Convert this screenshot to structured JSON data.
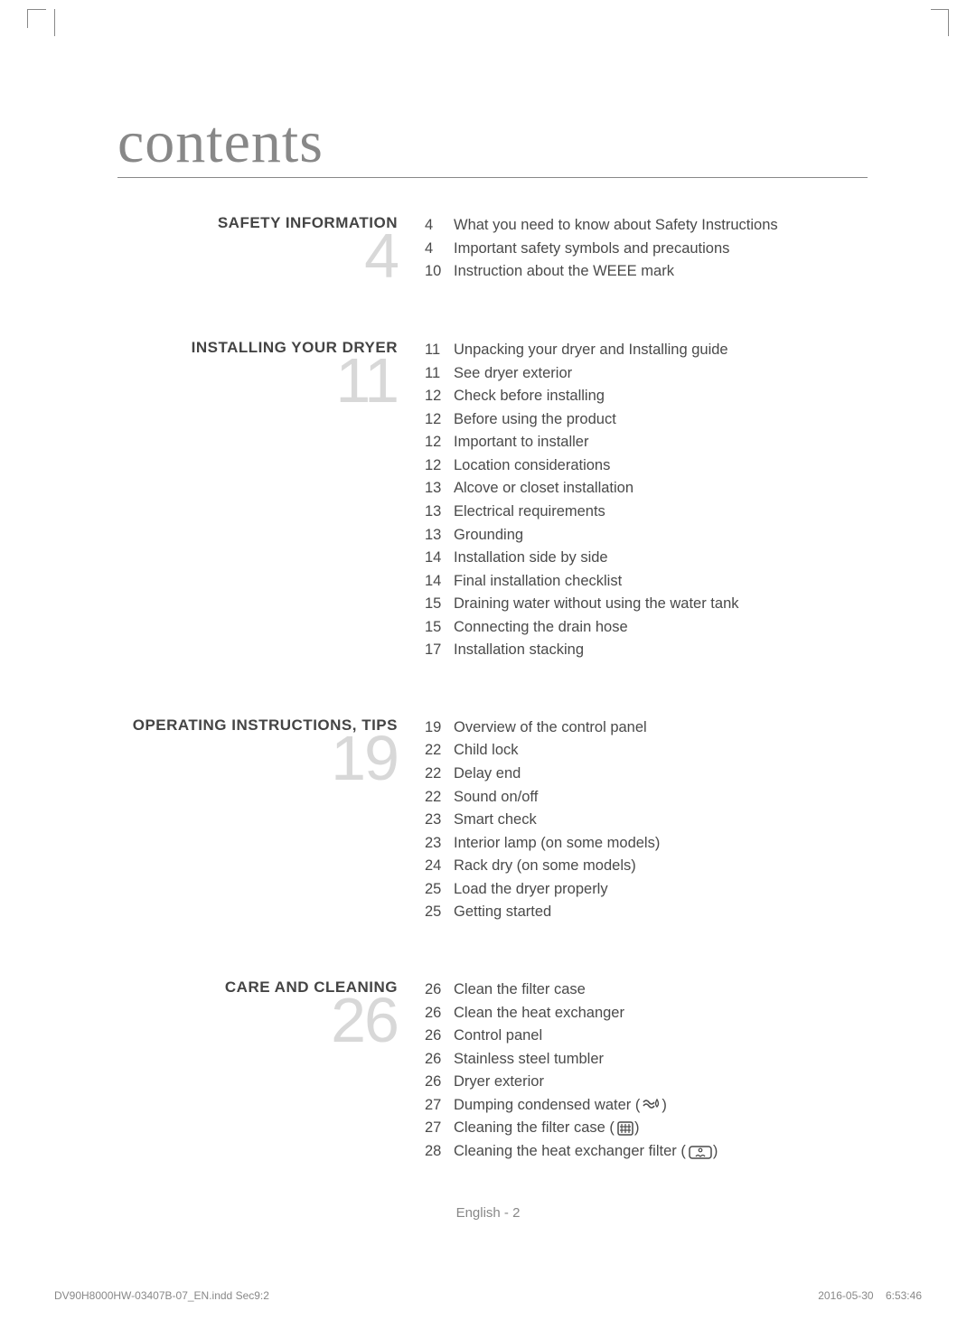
{
  "title": "contents",
  "sections": [
    {
      "heading": "SAFETY INFORMATION",
      "number": "4",
      "items": [
        {
          "page": "4",
          "text": "What you need to know about Safety Instructions"
        },
        {
          "page": "4",
          "text": "Important safety symbols and precautions"
        },
        {
          "page": "10",
          "text": "Instruction about the WEEE mark"
        }
      ]
    },
    {
      "heading": "INSTALLING YOUR DRYER",
      "number": "11",
      "items": [
        {
          "page": "11",
          "text": "Unpacking your dryer and Installing guide"
        },
        {
          "page": "11",
          "text": "See dryer exterior"
        },
        {
          "page": "12",
          "text": "Check before installing"
        },
        {
          "page": "12",
          "text": "Before using the product"
        },
        {
          "page": "12",
          "text": "Important to installer"
        },
        {
          "page": "12",
          "text": "Location considerations"
        },
        {
          "page": "13",
          "text": "Alcove or closet installation"
        },
        {
          "page": "13",
          "text": "Electrical requirements"
        },
        {
          "page": "13",
          "text": "Grounding"
        },
        {
          "page": "14",
          "text": "Installation side by side"
        },
        {
          "page": "14",
          "text": "Final installation checklist"
        },
        {
          "page": "15",
          "text": "Draining water without using the water tank"
        },
        {
          "page": "15",
          "text": "Connecting the drain hose"
        },
        {
          "page": "17",
          "text": "Installation stacking"
        }
      ]
    },
    {
      "heading": "OPERATING INSTRUCTIONS, TIPS",
      "number": "19",
      "items": [
        {
          "page": "19",
          "text": "Overview of the control panel"
        },
        {
          "page": "22",
          "text": "Child lock"
        },
        {
          "page": "22",
          "text": "Delay end"
        },
        {
          "page": "22",
          "text": "Sound on/off"
        },
        {
          "page": "23",
          "text": "Smart check"
        },
        {
          "page": "23",
          "text": "Interior lamp (on some models)"
        },
        {
          "page": "24",
          "text": "Rack dry (on some models)"
        },
        {
          "page": "25",
          "text": "Load the dryer properly"
        },
        {
          "page": "25",
          "text": "Getting started"
        }
      ]
    },
    {
      "heading": "CARE AND CLEANING",
      "number": "26",
      "items": [
        {
          "page": "26",
          "text": "Clean the filter case"
        },
        {
          "page": "26",
          "text": "Clean the heat exchanger"
        },
        {
          "page": "26",
          "text": "Control panel"
        },
        {
          "page": "26",
          "text": "Stainless steel tumbler"
        },
        {
          "page": "26",
          "text": "Dryer exterior"
        },
        {
          "page": "27",
          "text": "Dumping condensed water (",
          "icon": "water"
        },
        {
          "page": "27",
          "text": "Cleaning the filter case (",
          "icon": "filter"
        },
        {
          "page": "28",
          "text": "Cleaning the heat exchanger filter (",
          "icon": "exchanger"
        }
      ]
    }
  ],
  "footer": {
    "center": "English - 2",
    "left": "DV90H8000HW-03407B-07_EN.indd   Sec9:2",
    "right_date": "2016-05-30",
    "right_time": "6:53:46"
  },
  "colors": {
    "text": "#4a4a4a",
    "light_number": "#d8d8d8",
    "title_color": "#888888",
    "rule": "#888888"
  }
}
